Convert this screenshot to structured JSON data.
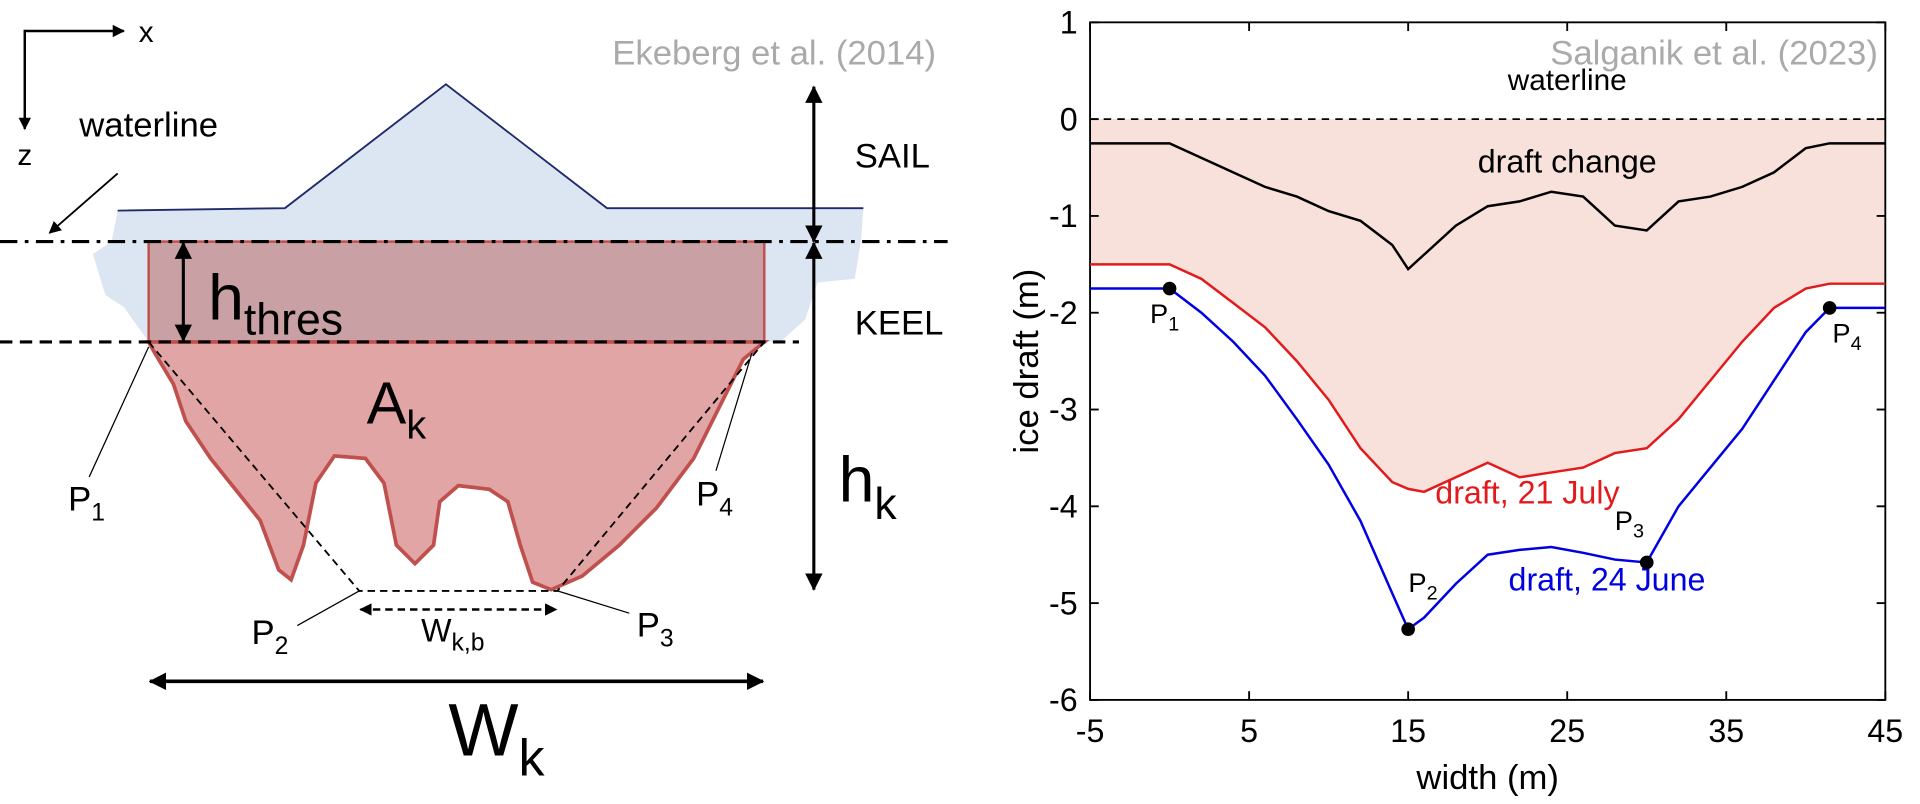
{
  "diagram": {
    "citation": "Ekeberg et al. (2014)",
    "axis_x": "x",
    "axis_z": "z",
    "waterline": "waterline",
    "sail": "SAIL",
    "keel": "KEEL",
    "h_thres": {
      "main": "h",
      "sub": "thres"
    },
    "A_k": {
      "main": "A",
      "sub": "k"
    },
    "h_k": {
      "main": "h",
      "sub": "k"
    },
    "W_k": {
      "main": "W",
      "sub": "k"
    },
    "W_kb": {
      "main": "W",
      "sub": "k,b"
    },
    "P1": {
      "main": "P",
      "sub": "1"
    },
    "P2": {
      "main": "P",
      "sub": "2"
    },
    "P3": {
      "main": "P",
      "sub": "3"
    },
    "P4": {
      "main": "P",
      "sub": "4"
    }
  },
  "chart_data": {
    "type": "line",
    "citation": "Salganik et al. (2023)",
    "xlabel": "width (m)",
    "ylabel": "ice draft (m)",
    "xlim": [
      -5,
      45
    ],
    "ylim": [
      -6,
      1
    ],
    "xticks": [
      -5,
      5,
      15,
      25,
      35,
      45
    ],
    "yticks": [
      -6,
      -5,
      -4,
      -3,
      -2,
      -1,
      0,
      1
    ],
    "hline": 0,
    "annotations": [
      "waterline"
    ],
    "x": [
      -5,
      0,
      2,
      4,
      6,
      8,
      10,
      12,
      14,
      15,
      16,
      18,
      20,
      22,
      24,
      26,
      28,
      30,
      32,
      34,
      36,
      38,
      40,
      41.5,
      45
    ],
    "series": [
      {
        "name": "draft, 21 July",
        "color": "#e31a1c",
        "values": [
          -1.5,
          -1.5,
          -1.65,
          -1.9,
          -2.15,
          -2.5,
          -2.9,
          -3.4,
          -3.75,
          -3.82,
          -3.85,
          -3.7,
          -3.55,
          -3.7,
          -3.65,
          -3.6,
          -3.45,
          -3.4,
          -3.1,
          -2.7,
          -2.3,
          -1.95,
          -1.75,
          -1.7,
          -1.7
        ]
      },
      {
        "name": "draft, 24 June",
        "color": "#0000e0",
        "values": [
          -1.75,
          -1.75,
          -2.0,
          -2.3,
          -2.65,
          -3.1,
          -3.57,
          -4.15,
          -4.9,
          -5.27,
          -5.15,
          -4.8,
          -4.5,
          -4.45,
          -4.42,
          -4.48,
          -4.55,
          -4.58,
          -4.0,
          -3.6,
          -3.2,
          -2.7,
          -2.2,
          -1.95,
          -1.95
        ]
      },
      {
        "name": "draft change",
        "color": "#000000",
        "values": [
          -0.25,
          -0.25,
          -0.4,
          -0.55,
          -0.7,
          -0.8,
          -0.95,
          -1.05,
          -1.3,
          -1.55,
          -1.4,
          -1.1,
          -0.9,
          -0.85,
          -0.75,
          -0.8,
          -1.1,
          -1.15,
          -0.85,
          -0.8,
          -0.7,
          -0.55,
          -0.3,
          -0.25,
          -0.25
        ]
      }
    ],
    "points": [
      {
        "label": {
          "main": "P",
          "sub": "1"
        },
        "x": 0,
        "y": -1.75
      },
      {
        "label": {
          "main": "P",
          "sub": "2"
        },
        "x": 15,
        "y": -5.27
      },
      {
        "label": {
          "main": "P",
          "sub": "3"
        },
        "x": 30,
        "y": -4.58
      },
      {
        "label": {
          "main": "P",
          "sub": "4"
        },
        "x": 41.5,
        "y": -1.95
      }
    ]
  }
}
